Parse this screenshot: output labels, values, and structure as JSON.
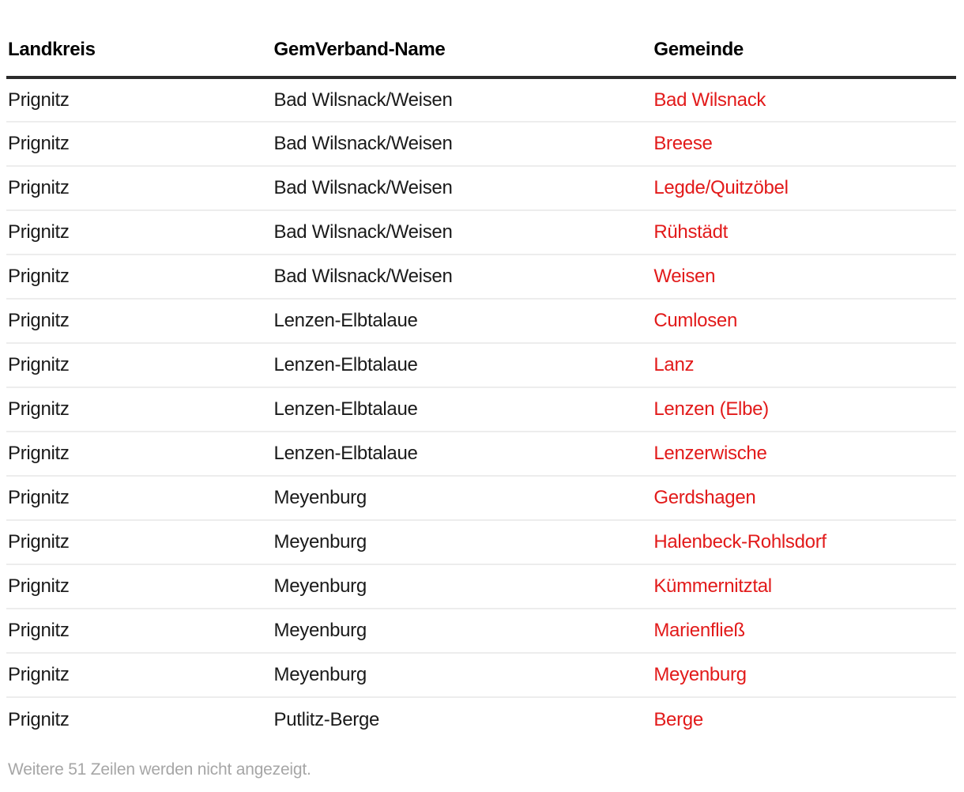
{
  "chart_data": {
    "type": "table",
    "columns": [
      "Landkreis",
      "GemVerband-Name",
      "Gemeinde"
    ],
    "rows": [
      [
        "Prignitz",
        "Bad Wilsnack/Weisen",
        "Bad Wilsnack"
      ],
      [
        "Prignitz",
        "Bad Wilsnack/Weisen",
        "Breese"
      ],
      [
        "Prignitz",
        "Bad Wilsnack/Weisen",
        "Legde/Quitzöbel"
      ],
      [
        "Prignitz",
        "Bad Wilsnack/Weisen",
        "Rühstädt"
      ],
      [
        "Prignitz",
        "Bad Wilsnack/Weisen",
        "Weisen"
      ],
      [
        "Prignitz",
        "Lenzen-Elbtalaue",
        "Cumlosen"
      ],
      [
        "Prignitz",
        "Lenzen-Elbtalaue",
        "Lanz"
      ],
      [
        "Prignitz",
        "Lenzen-Elbtalaue",
        "Lenzen (Elbe)"
      ],
      [
        "Prignitz",
        "Lenzen-Elbtalaue",
        "Lenzerwische"
      ],
      [
        "Prignitz",
        "Meyenburg",
        "Gerdshagen"
      ],
      [
        "Prignitz",
        "Meyenburg",
        "Halenbeck-Rohlsdorf"
      ],
      [
        "Prignitz",
        "Meyenburg",
        "Kümmernitztal"
      ],
      [
        "Prignitz",
        "Meyenburg",
        "Marienfließ"
      ],
      [
        "Prignitz",
        "Meyenburg",
        "Meyenburg"
      ],
      [
        "Prignitz",
        "Putlitz-Berge",
        "Berge"
      ]
    ],
    "link_column": "Gemeinde",
    "footer_note": "Weitere 51 Zeilen werden nicht angezeigt."
  },
  "colors": {
    "link_red": "#e21a1a",
    "header_text": "#000000",
    "body_text": "#1a1a1a",
    "header_rule": "#2b2b2b",
    "row_separator": "#ededed",
    "footer_text": "#a6a6a6",
    "page_bg": "#ffffff"
  }
}
